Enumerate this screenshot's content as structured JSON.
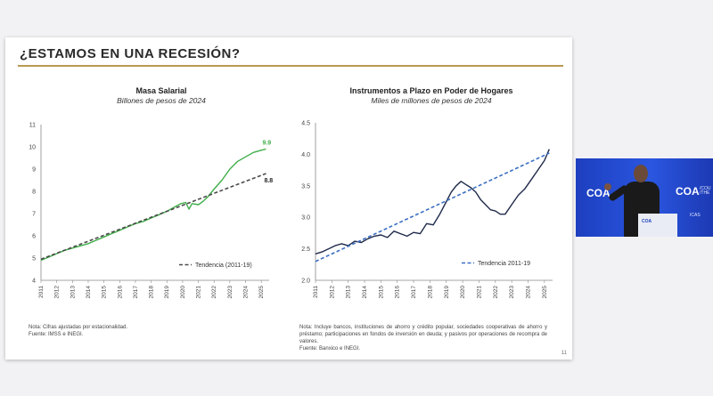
{
  "slide": {
    "title": "¿ESTAMOS EN UNA RECESIÓN?",
    "page_number": "11",
    "accent_color": "#b79a52"
  },
  "charts": [
    {
      "title": "Masa Salarial",
      "subtitle": "Billones de pesos de 2024",
      "note": "Nota: Cifras ajustadas por estacionalidad.",
      "source": "Fuente: IMSS e INEGI."
    },
    {
      "title": "Instrumentos a Plazo en Poder de Hogares",
      "subtitle": "Miles de millones de pesos de 2024",
      "note": "Nota: Incluye bancos, instituciones de ahorro y crédito popular, sociedades cooperativas de ahorro y préstamo; participaciones en fondos de inversión en deuda; y pasivos por operaciones de recompra de valores.",
      "source": "Fuente: Banxico e INEGI."
    }
  ],
  "chart_data": [
    {
      "type": "line",
      "title": "Masa Salarial",
      "subtitle": "Billones de pesos de 2024",
      "ylim": [
        4,
        11
      ],
      "yticks": [
        "4",
        "5",
        "6",
        "7",
        "8",
        "9",
        "10",
        "11"
      ],
      "xlim": [
        2011,
        2025.5
      ],
      "xticks": [
        "2011",
        "2012",
        "2013",
        "2014",
        "2015",
        "2016",
        "2017",
        "2018",
        "2019",
        "2020",
        "2021",
        "2022",
        "2023",
        "2024",
        "2025"
      ],
      "series": [
        {
          "name": "",
          "color": "#3fae49",
          "x": [
            2011.0,
            2011.5,
            2012.0,
            2012.5,
            2013.0,
            2013.5,
            2014.0,
            2014.5,
            2015.0,
            2015.5,
            2016.0,
            2016.5,
            2017.0,
            2017.5,
            2018.0,
            2018.5,
            2019.0,
            2019.5,
            2019.9,
            2020.2,
            2020.4,
            2020.6,
            2021.0,
            2021.3,
            2021.6,
            2022.0,
            2022.5,
            2023.0,
            2023.5,
            2024.0,
            2024.5,
            2025.0,
            2025.3
          ],
          "values": [
            4.9,
            5.05,
            5.2,
            5.35,
            5.45,
            5.55,
            5.65,
            5.8,
            5.95,
            6.1,
            6.25,
            6.4,
            6.55,
            6.65,
            6.8,
            6.95,
            7.1,
            7.3,
            7.45,
            7.5,
            7.2,
            7.45,
            7.4,
            7.55,
            7.75,
            8.1,
            8.5,
            9.0,
            9.35,
            9.55,
            9.75,
            9.85,
            9.9
          ]
        },
        {
          "name": "Tendencia (2011-19)",
          "color": "#4a4a4a",
          "dashed": true,
          "x": [
            2011,
            2025.3
          ],
          "values": [
            4.95,
            8.8
          ]
        }
      ],
      "labels": [
        {
          "text": "9.9",
          "color": "#3fae49"
        },
        {
          "text": "8.8",
          "color": "#222222"
        }
      ],
      "legend": "bottom-right"
    },
    {
      "type": "line",
      "title": "Instrumentos a Plazo en Poder de Hogares",
      "subtitle": "Miles de millones de pesos de 2024",
      "ylim": [
        2.0,
        4.5
      ],
      "yticks": [
        "2.0",
        "2.5",
        "3.0",
        "3.5",
        "4.0",
        "4.5"
      ],
      "xlim": [
        2011,
        2025.5
      ],
      "xticks": [
        "2011",
        "2012",
        "2013",
        "2014",
        "2015",
        "2016",
        "2017",
        "2018",
        "2019",
        "2020",
        "2021",
        "2022",
        "2023",
        "2024",
        "2025"
      ],
      "series": [
        {
          "name": "",
          "color": "#1f2a4a",
          "x": [
            2011.0,
            2011.4,
            2011.8,
            2012.2,
            2012.6,
            2013.0,
            2013.4,
            2013.8,
            2014.2,
            2014.6,
            2015.0,
            2015.4,
            2015.8,
            2016.2,
            2016.6,
            2017.0,
            2017.4,
            2017.8,
            2018.2,
            2018.6,
            2019.0,
            2019.3,
            2019.6,
            2019.9,
            2020.2,
            2020.5,
            2020.8,
            2021.1,
            2021.4,
            2021.7,
            2022.0,
            2022.3,
            2022.6,
            2023.0,
            2023.4,
            2023.8,
            2024.2,
            2024.6,
            2025.0,
            2025.3
          ],
          "values": [
            2.42,
            2.45,
            2.5,
            2.55,
            2.58,
            2.55,
            2.62,
            2.6,
            2.66,
            2.7,
            2.72,
            2.68,
            2.78,
            2.74,
            2.7,
            2.76,
            2.74,
            2.9,
            2.88,
            3.05,
            3.25,
            3.4,
            3.5,
            3.57,
            3.52,
            3.47,
            3.4,
            3.28,
            3.2,
            3.12,
            3.1,
            3.05,
            3.05,
            3.2,
            3.35,
            3.45,
            3.6,
            3.75,
            3.9,
            4.08
          ]
        },
        {
          "name": "Tendencia 2011-19",
          "color": "#3b6fc4",
          "dashed": true,
          "x": [
            2011,
            2025.3
          ],
          "values": [
            2.3,
            4.02
          ]
        }
      ],
      "legend": "bottom-right"
    }
  ],
  "video": {
    "brand_left": "COA",
    "brand_right": "COA",
    "brand_right_tag": "/COU /THE",
    "podium_label": "COA",
    "side_text": "ICAS"
  }
}
